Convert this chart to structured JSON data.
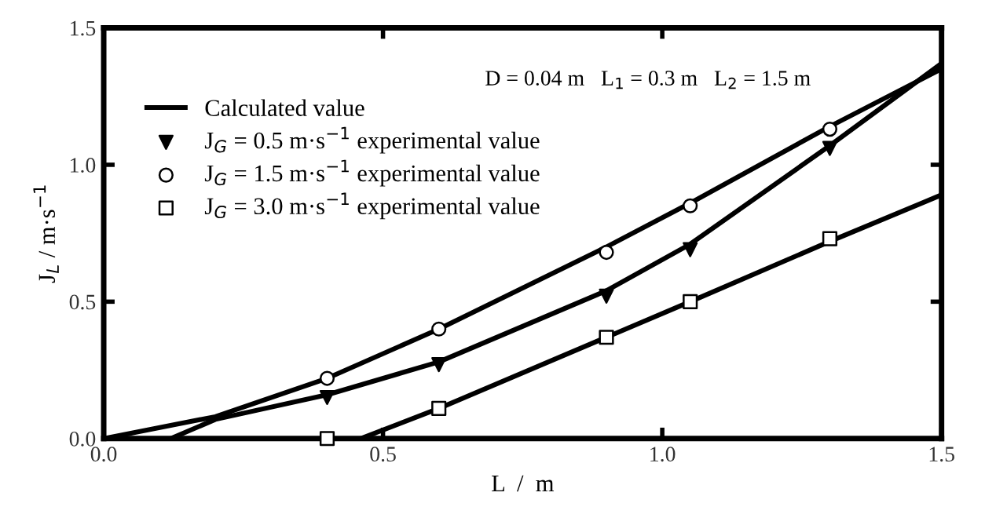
{
  "chart_data": {
    "type": "line",
    "xlabel": "L  /  m",
    "ylabel": "J$_{L}$ / m·s$^{−1}$",
    "annotations": [
      "D = 0.04 m   L$_{1}$ = 0.3 m   L$_{2}$ = 1.5 m"
    ],
    "xlim": [
      0,
      1.5
    ],
    "ylim": [
      0,
      1.5
    ],
    "xticks": [
      {
        "value": 0,
        "label": "0.0"
      },
      0.5,
      {
        "value": 1,
        "label": "1.0"
      },
      1.5
    ],
    "yticks": [
      {
        "value": 0,
        "label": "0.0"
      },
      0.5,
      {
        "value": 1,
        "label": "1.0"
      },
      1.5
    ],
    "grid": false,
    "legend": "top left",
    "series": [
      {
        "name": "Calculated value",
        "color": "#000000",
        "marker": "none",
        "line_style": "solid",
        "x": [
          0.0,
          0.2,
          0.4,
          0.6,
          0.9,
          1.05,
          1.3,
          1.5
        ],
        "values": [
          0.0,
          0.08,
          0.22,
          0.4,
          0.7,
          0.86,
          1.14,
          1.35
        ]
      },
      {
        "color": "#000000",
        "marker": "none",
        "line_style": "solid",
        "x": [
          0.12,
          0.2,
          0.4,
          0.6,
          0.9,
          1.05,
          1.3,
          1.5
        ],
        "values": [
          0.0,
          0.07,
          0.16,
          0.28,
          0.54,
          0.71,
          1.07,
          1.37
        ]
      },
      {
        "color": "#000000",
        "marker": "none",
        "line_style": "solid",
        "x": [
          0.46,
          0.6,
          0.9,
          1.05,
          1.3,
          1.5
        ],
        "values": [
          0.0,
          0.11,
          0.37,
          0.5,
          0.72,
          0.89
        ]
      },
      {
        "type": "scatter",
        "name": "J$_{G}$ = 0.5 m·s$^{−1}$ experimental value",
        "color": "#000000",
        "marker": "triangle",
        "x": [
          0.4,
          0.6,
          0.9,
          1.05,
          1.3
        ],
        "values": [
          0.15,
          0.27,
          0.52,
          0.69,
          1.06
        ]
      },
      {
        "type": "scatter",
        "name": "J$_{G}$ = 1.5 m·s$^{−1}$ experimental value",
        "color": "#ffffff",
        "marker": "circle",
        "x": [
          0.4,
          0.6,
          0.9,
          1.05,
          1.3
        ],
        "values": [
          0.22,
          0.4,
          0.68,
          0.85,
          1.13
        ]
      },
      {
        "type": "scatter",
        "name": "J$_{G}$ = 3.0 m·s$^{−1}$ experimental value",
        "color": "#ffffff",
        "marker": "square",
        "x": [
          0.4,
          0.6,
          0.9,
          1.05,
          1.3
        ],
        "values": [
          0.0,
          0.11,
          0.37,
          0.5,
          0.73
        ]
      }
    ]
  }
}
